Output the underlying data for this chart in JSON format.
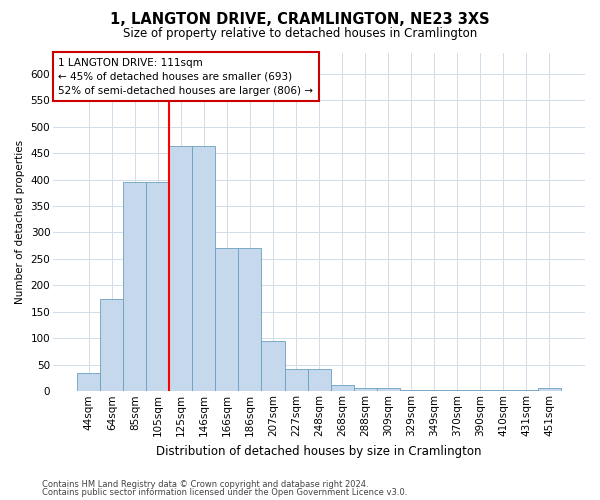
{
  "title": "1, LANGTON DRIVE, CRAMLINGTON, NE23 3XS",
  "subtitle": "Size of property relative to detached houses in Cramlington",
  "xlabel": "Distribution of detached houses by size in Cramlington",
  "ylabel": "Number of detached properties",
  "footer1": "Contains HM Land Registry data © Crown copyright and database right 2024.",
  "footer2": "Contains public sector information licensed under the Open Government Licence v3.0.",
  "bar_labels": [
    "44sqm",
    "64sqm",
    "85sqm",
    "105sqm",
    "125sqm",
    "146sqm",
    "166sqm",
    "186sqm",
    "207sqm",
    "227sqm",
    "248sqm",
    "268sqm",
    "288sqm",
    "309sqm",
    "329sqm",
    "349sqm",
    "370sqm",
    "390sqm",
    "410sqm",
    "431sqm",
    "451sqm"
  ],
  "bar_values": [
    35,
    175,
    395,
    395,
    463,
    463,
    270,
    270,
    95,
    42,
    42,
    12,
    7,
    7,
    3,
    3,
    3,
    3,
    3,
    3,
    7
  ],
  "bar_color": "#c5d8ec",
  "bar_edge_color": "#6a9fc0",
  "annotation_text": "1 LANGTON DRIVE: 111sqm\n← 45% of detached houses are smaller (693)\n52% of semi-detached houses are larger (806) →",
  "red_line_x": 3.5,
  "annotation_box_color": "#ffffff",
  "annotation_box_edge": "#cc0000",
  "grid_color": "#d0dce8",
  "background_color": "#ffffff",
  "ylim": [
    0,
    640
  ],
  "yticks": [
    0,
    50,
    100,
    150,
    200,
    250,
    300,
    350,
    400,
    450,
    500,
    550,
    600
  ]
}
